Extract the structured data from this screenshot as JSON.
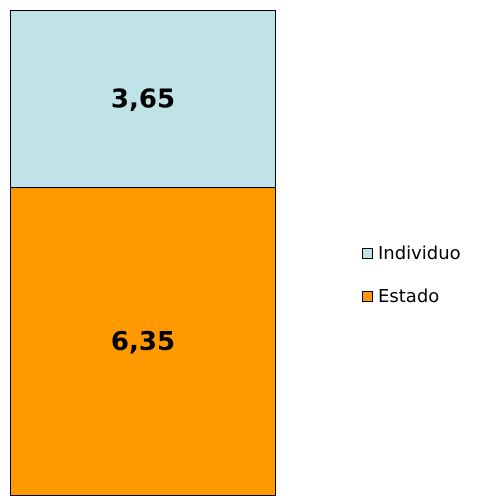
{
  "chart_data": {
    "type": "stacked-bar",
    "categories": [
      null
    ],
    "series": [
      {
        "name": "Estado",
        "color": "#ff9900",
        "values": [
          6.35
        ],
        "value_labels": [
          "6,35"
        ]
      },
      {
        "name": "Individuo",
        "color": "#bfe3e6",
        "values": [
          3.65
        ],
        "value_labels": [
          "3,65"
        ]
      }
    ],
    "ylim": [
      0,
      10
    ],
    "legend": "right"
  }
}
